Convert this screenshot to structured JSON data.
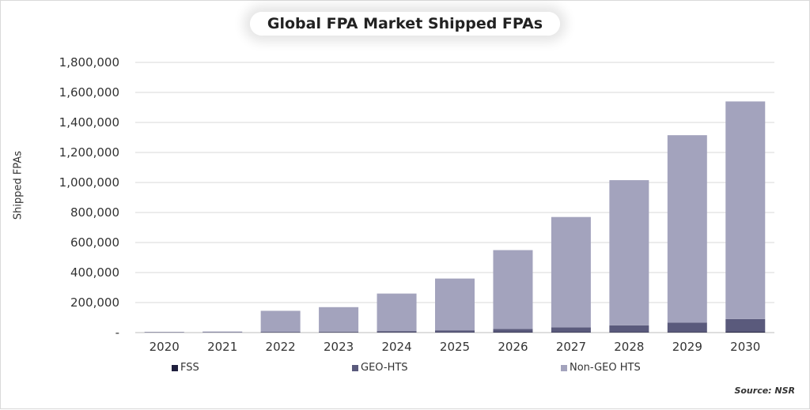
{
  "chart_data": {
    "type": "bar",
    "stacked": true,
    "title": "Global FPA Market Shipped FPAs",
    "xlabel": "",
    "ylabel": "Shipped FPAs",
    "categories": [
      "2020",
      "2021",
      "2022",
      "2023",
      "2024",
      "2025",
      "2026",
      "2027",
      "2028",
      "2029",
      "2030"
    ],
    "ylim": [
      0,
      1800000
    ],
    "yticks": [
      0,
      200000,
      400000,
      600000,
      800000,
      1000000,
      1200000,
      1400000,
      1600000,
      1800000
    ],
    "ytick_labels": [
      "-",
      "200,000",
      "400,000",
      "600,000",
      "800,000",
      "1,000,000",
      "1,200,000",
      "1,400,000",
      "1,600,000",
      "1,800,000"
    ],
    "grid": true,
    "legend_position": "bottom",
    "series": [
      {
        "name": "FSS",
        "color": "#1f1f3d",
        "values": [
          1000,
          1000,
          1500,
          1500,
          2000,
          2000,
          2500,
          3000,
          3500,
          4000,
          5000
        ]
      },
      {
        "name": "GEO-HTS",
        "color": "#5a5a7c",
        "values": [
          1000,
          2000,
          3500,
          5000,
          8000,
          13000,
          22000,
          32000,
          45000,
          63000,
          85000
        ]
      },
      {
        "name": "Non-GEO HTS",
        "color": "#a3a3bd",
        "values": [
          3000,
          4000,
          140000,
          163000,
          250000,
          345000,
          525000,
          735000,
          967000,
          1248000,
          1450000
        ]
      }
    ]
  },
  "source": "Source: NSR"
}
